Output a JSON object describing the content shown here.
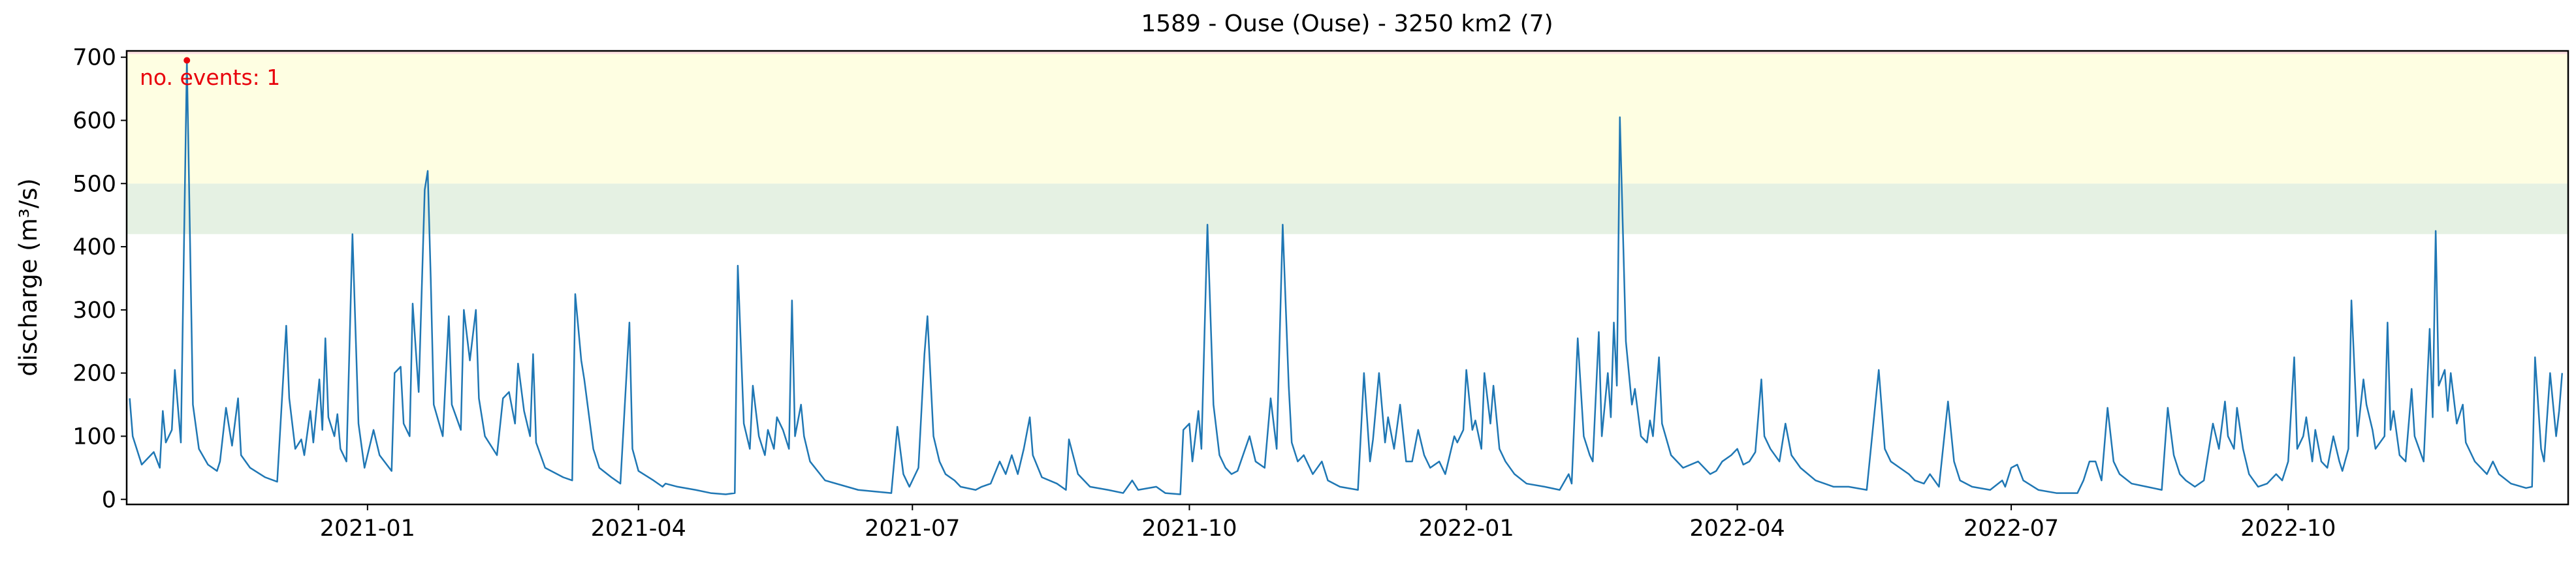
{
  "chart_data": {
    "type": "line",
    "title": "1589 - Ouse (Ouse) - 3250 km2 (7)",
    "y_label": "discharge (m³/s)",
    "annotation": "no. events: 1",
    "xlim": [
      "2020-10-13",
      "2023-01-02"
    ],
    "xticks": [
      "2021-01",
      "2021-04",
      "2021-07",
      "2021-10",
      "2022-01",
      "2022-04",
      "2022-07",
      "2022-10"
    ],
    "ylim": [
      -8,
      710
    ],
    "yticks": [
      0,
      100,
      200,
      300,
      400,
      500,
      600,
      700
    ],
    "thresholds": [
      420,
      500,
      705
    ],
    "threshold_colors": [
      "#e5f1e3",
      "#fefee2",
      "#fde2e2"
    ],
    "events": {
      "x": [
        "2020-11-02"
      ],
      "values": [
        695
      ],
      "color": "#e8000b"
    },
    "series": [
      {
        "name": "discharge",
        "color": "#1f77b4",
        "x": [
          "2020-10-14",
          "2020-10-15",
          "2020-10-18",
          "2020-10-22",
          "2020-10-24",
          "2020-10-25",
          "2020-10-26",
          "2020-10-28",
          "2020-10-29",
          "2020-10-31",
          "2020-11-02",
          "2020-11-04",
          "2020-11-06",
          "2020-11-09",
          "2020-11-12",
          "2020-11-13",
          "2020-11-15",
          "2020-11-17",
          "2020-11-19",
          "2020-11-20",
          "2020-11-23",
          "2020-11-28",
          "2020-12-02",
          "2020-12-05",
          "2020-12-06",
          "2020-12-08",
          "2020-12-10",
          "2020-12-11",
          "2020-12-13",
          "2020-12-14",
          "2020-12-16",
          "2020-12-17",
          "2020-12-18",
          "2020-12-19",
          "2020-12-21",
          "2020-12-22",
          "2020-12-23",
          "2020-12-25",
          "2020-12-27",
          "2020-12-29",
          "2020-12-31",
          "2021-01-03",
          "2021-01-05",
          "2021-01-09",
          "2021-01-10",
          "2021-01-12",
          "2021-01-13",
          "2021-01-15",
          "2021-01-16",
          "2021-01-18",
          "2021-01-20",
          "2021-01-21",
          "2021-01-22",
          "2021-01-23",
          "2021-01-26",
          "2021-01-28",
          "2021-01-29",
          "2021-02-01",
          "2021-02-02",
          "2021-02-04",
          "2021-02-06",
          "2021-02-07",
          "2021-02-09",
          "2021-02-13",
          "2021-02-15",
          "2021-02-17",
          "2021-02-19",
          "2021-02-20",
          "2021-02-22",
          "2021-02-24",
          "2021-02-25",
          "2021-02-26",
          "2021-03-01",
          "2021-03-07",
          "2021-03-10",
          "2021-03-11",
          "2021-03-13",
          "2021-03-14",
          "2021-03-17",
          "2021-03-19",
          "2021-03-23",
          "2021-03-26",
          "2021-03-29",
          "2021-03-30",
          "2021-04-01",
          "2021-04-06",
          "2021-04-09",
          "2021-04-10",
          "2021-04-14",
          "2021-04-20",
          "2021-04-25",
          "2021-04-30",
          "2021-05-03",
          "2021-05-04",
          "2021-05-06",
          "2021-05-08",
          "2021-05-09",
          "2021-05-11",
          "2021-05-13",
          "2021-05-14",
          "2021-05-16",
          "2021-05-17",
          "2021-05-19",
          "2021-05-21",
          "2021-05-22",
          "2021-05-23",
          "2021-05-25",
          "2021-05-26",
          "2021-05-28",
          "2021-06-02",
          "2021-06-13",
          "2021-06-24",
          "2021-06-26",
          "2021-06-28",
          "2021-06-30",
          "2021-07-03",
          "2021-07-05",
          "2021-07-06",
          "2021-07-08",
          "2021-07-10",
          "2021-07-12",
          "2021-07-15",
          "2021-07-17",
          "2021-07-22",
          "2021-07-24",
          "2021-07-27",
          "2021-07-30",
          "2021-08-01",
          "2021-08-03",
          "2021-08-05",
          "2021-08-07",
          "2021-08-09",
          "2021-08-10",
          "2021-08-13",
          "2021-08-18",
          "2021-08-21",
          "2021-08-22",
          "2021-08-25",
          "2021-08-29",
          "2021-09-04",
          "2021-09-09",
          "2021-09-12",
          "2021-09-14",
          "2021-09-20",
          "2021-09-23",
          "2021-09-28",
          "2021-09-29",
          "2021-10-01",
          "2021-10-02",
          "2021-10-04",
          "2021-10-05",
          "2021-10-07",
          "2021-10-09",
          "2021-10-11",
          "2021-10-13",
          "2021-10-15",
          "2021-10-17",
          "2021-10-21",
          "2021-10-23",
          "2021-10-26",
          "2021-10-28",
          "2021-10-30",
          "2021-11-01",
          "2021-11-03",
          "2021-11-04",
          "2021-11-06",
          "2021-11-08",
          "2021-11-11",
          "2021-11-14",
          "2021-11-16",
          "2021-11-20",
          "2021-11-26",
          "2021-11-28",
          "2021-11-30",
          "2021-12-01",
          "2021-12-03",
          "2021-12-05",
          "2021-12-06",
          "2021-12-08",
          "2021-12-10",
          "2021-12-12",
          "2021-12-14",
          "2021-12-16",
          "2021-12-18",
          "2021-12-20",
          "2021-12-23",
          "2021-12-25",
          "2021-12-28",
          "2021-12-29",
          "2021-12-31",
          "2022-01-01",
          "2022-01-03",
          "2022-01-04",
          "2022-01-06",
          "2022-01-07",
          "2022-01-09",
          "2022-01-10",
          "2022-01-12",
          "2022-01-14",
          "2022-01-17",
          "2022-01-21",
          "2022-01-27",
          "2022-02-01",
          "2022-02-04",
          "2022-02-05",
          "2022-02-07",
          "2022-02-09",
          "2022-02-11",
          "2022-02-12",
          "2022-02-14",
          "2022-02-15",
          "2022-02-17",
          "2022-02-18",
          "2022-02-19",
          "2022-02-20",
          "2022-02-21",
          "2022-02-23",
          "2022-02-25",
          "2022-02-26",
          "2022-02-28",
          "2022-03-02",
          "2022-03-03",
          "2022-03-04",
          "2022-03-06",
          "2022-03-07",
          "2022-03-10",
          "2022-03-14",
          "2022-03-19",
          "2022-03-23",
          "2022-03-25",
          "2022-03-27",
          "2022-03-30",
          "2022-04-01",
          "2022-04-03",
          "2022-04-05",
          "2022-04-07",
          "2022-04-09",
          "2022-04-10",
          "2022-04-12",
          "2022-04-15",
          "2022-04-17",
          "2022-04-19",
          "2022-04-22",
          "2022-04-27",
          "2022-05-03",
          "2022-05-08",
          "2022-05-14",
          "2022-05-18",
          "2022-05-20",
          "2022-05-22",
          "2022-05-25",
          "2022-05-28",
          "2022-05-30",
          "2022-06-02",
          "2022-06-04",
          "2022-06-07",
          "2022-06-10",
          "2022-06-12",
          "2022-06-14",
          "2022-06-18",
          "2022-06-24",
          "2022-06-28",
          "2022-06-29",
          "2022-07-01",
          "2022-07-03",
          "2022-07-05",
          "2022-07-10",
          "2022-07-16",
          "2022-07-23",
          "2022-07-25",
          "2022-07-27",
          "2022-07-29",
          "2022-07-31",
          "2022-08-02",
          "2022-08-04",
          "2022-08-06",
          "2022-08-10",
          "2022-08-15",
          "2022-08-20",
          "2022-08-22",
          "2022-08-24",
          "2022-08-26",
          "2022-08-28",
          "2022-08-31",
          "2022-09-03",
          "2022-09-05",
          "2022-09-06",
          "2022-09-08",
          "2022-09-10",
          "2022-09-11",
          "2022-09-13",
          "2022-09-14",
          "2022-09-16",
          "2022-09-18",
          "2022-09-21",
          "2022-09-24",
          "2022-09-27",
          "2022-09-29",
          "2022-10-01",
          "2022-10-03",
          "2022-10-04",
          "2022-10-06",
          "2022-10-07",
          "2022-10-09",
          "2022-10-10",
          "2022-10-12",
          "2022-10-14",
          "2022-10-16",
          "2022-10-18",
          "2022-10-19",
          "2022-10-21",
          "2022-10-22",
          "2022-10-24",
          "2022-10-26",
          "2022-10-27",
          "2022-10-29",
          "2022-10-30",
          "2022-11-02",
          "2022-11-03",
          "2022-11-04",
          "2022-11-05",
          "2022-11-07",
          "2022-11-09",
          "2022-11-11",
          "2022-11-12",
          "2022-11-15",
          "2022-11-17",
          "2022-11-18",
          "2022-11-19",
          "2022-11-20",
          "2022-11-22",
          "2022-11-23",
          "2022-11-24",
          "2022-11-26",
          "2022-11-28",
          "2022-11-29",
          "2022-12-02",
          "2022-12-06",
          "2022-12-08",
          "2022-12-10",
          "2022-12-14",
          "2022-12-19",
          "2022-12-21",
          "2022-12-22",
          "2022-12-24",
          "2022-12-25",
          "2022-12-27",
          "2022-12-29",
          "2022-12-30",
          "2022-12-31"
        ],
        "values": [
          160,
          100,
          55,
          75,
          50,
          140,
          90,
          110,
          205,
          90,
          695,
          150,
          80,
          55,
          45,
          60,
          145,
          85,
          160,
          70,
          50,
          35,
          28,
          275,
          160,
          80,
          95,
          70,
          140,
          90,
          190,
          110,
          255,
          130,
          100,
          135,
          80,
          60,
          420,
          120,
          50,
          110,
          70,
          45,
          200,
          210,
          120,
          100,
          310,
          170,
          490,
          520,
          350,
          150,
          100,
          290,
          150,
          110,
          300,
          220,
          300,
          160,
          100,
          70,
          160,
          170,
          120,
          215,
          140,
          100,
          230,
          90,
          50,
          35,
          30,
          325,
          220,
          190,
          80,
          50,
          35,
          25,
          280,
          80,
          45,
          30,
          20,
          25,
          20,
          15,
          10,
          8,
          10,
          370,
          120,
          80,
          180,
          100,
          70,
          110,
          80,
          130,
          110,
          80,
          315,
          100,
          150,
          100,
          60,
          30,
          15,
          10,
          115,
          40,
          20,
          50,
          230,
          290,
          100,
          60,
          40,
          30,
          20,
          15,
          20,
          25,
          60,
          40,
          70,
          40,
          80,
          130,
          70,
          35,
          25,
          15,
          95,
          40,
          20,
          15,
          10,
          30,
          15,
          20,
          10,
          8,
          110,
          120,
          60,
          140,
          80,
          435,
          150,
          70,
          50,
          40,
          45,
          100,
          60,
          50,
          160,
          80,
          435,
          180,
          90,
          60,
          70,
          40,
          60,
          30,
          20,
          15,
          200,
          60,
          95,
          200,
          90,
          130,
          80,
          150,
          60,
          60,
          110,
          70,
          50,
          60,
          40,
          100,
          90,
          110,
          205,
          110,
          125,
          80,
          200,
          120,
          180,
          80,
          60,
          40,
          25,
          20,
          15,
          40,
          25,
          255,
          100,
          70,
          60,
          265,
          100,
          200,
          130,
          280,
          180,
          605,
          250,
          150,
          175,
          100,
          90,
          125,
          100,
          225,
          120,
          70,
          50,
          60,
          40,
          45,
          60,
          70,
          80,
          55,
          60,
          75,
          190,
          100,
          80,
          60,
          120,
          70,
          50,
          30,
          20,
          20,
          15,
          205,
          80,
          60,
          50,
          40,
          30,
          25,
          40,
          20,
          155,
          60,
          30,
          20,
          15,
          30,
          20,
          50,
          55,
          30,
          15,
          10,
          10,
          30,
          60,
          60,
          30,
          145,
          60,
          40,
          25,
          20,
          15,
          145,
          70,
          40,
          30,
          20,
          30,
          90,
          120,
          80,
          155,
          100,
          80,
          145,
          80,
          40,
          20,
          25,
          40,
          30,
          60,
          225,
          80,
          100,
          130,
          60,
          110,
          60,
          50,
          100,
          60,
          45,
          80,
          315,
          100,
          190,
          150,
          110,
          80,
          100,
          280,
          110,
          140,
          70,
          60,
          175,
          100,
          60,
          270,
          130,
          425,
          180,
          205,
          140,
          200,
          120,
          150,
          90,
          60,
          40,
          60,
          40,
          25,
          18,
          20,
          225,
          80,
          60,
          200,
          100,
          140,
          200
        ]
      }
    ]
  }
}
